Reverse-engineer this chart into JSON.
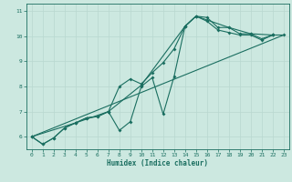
{
  "xlabel": "Humidex (Indice chaleur)",
  "bg_color": "#cce8e0",
  "grid_color": "#b8d8d0",
  "line_color": "#1a6e60",
  "xlim": [
    -0.5,
    23.5
  ],
  "ylim": [
    5.5,
    11.3
  ],
  "xticks": [
    0,
    1,
    2,
    3,
    4,
    5,
    6,
    7,
    8,
    9,
    10,
    11,
    12,
    13,
    14,
    15,
    16,
    17,
    18,
    19,
    20,
    21,
    22,
    23
  ],
  "yticks": [
    6,
    7,
    8,
    9,
    10,
    11
  ],
  "line1": [
    [
      0,
      6.0
    ],
    [
      1,
      5.7
    ],
    [
      2,
      5.95
    ],
    [
      3,
      6.35
    ],
    [
      4,
      6.55
    ],
    [
      5,
      6.75
    ],
    [
      6,
      6.8
    ],
    [
      7,
      7.0
    ],
    [
      8,
      6.25
    ],
    [
      9,
      6.6
    ],
    [
      10,
      8.0
    ],
    [
      11,
      8.35
    ],
    [
      12,
      6.9
    ],
    [
      13,
      8.4
    ],
    [
      14,
      10.4
    ],
    [
      15,
      10.8
    ],
    [
      16,
      10.75
    ],
    [
      17,
      10.35
    ],
    [
      18,
      10.35
    ],
    [
      19,
      10.1
    ],
    [
      20,
      10.1
    ],
    [
      21,
      9.9
    ],
    [
      22,
      10.05
    ]
  ],
  "line2": [
    [
      0,
      6.0
    ],
    [
      1,
      5.7
    ],
    [
      2,
      5.95
    ],
    [
      3,
      6.35
    ],
    [
      4,
      6.55
    ],
    [
      5,
      6.75
    ],
    [
      6,
      6.8
    ],
    [
      7,
      7.0
    ],
    [
      8,
      8.0
    ],
    [
      9,
      8.3
    ],
    [
      10,
      8.1
    ],
    [
      11,
      8.55
    ],
    [
      12,
      8.95
    ],
    [
      13,
      9.5
    ],
    [
      14,
      10.4
    ],
    [
      15,
      10.8
    ],
    [
      16,
      10.6
    ],
    [
      17,
      10.25
    ],
    [
      18,
      10.15
    ],
    [
      19,
      10.05
    ],
    [
      20,
      10.05
    ],
    [
      21,
      9.85
    ],
    [
      22,
      10.05
    ]
  ],
  "line3": [
    [
      0,
      6.0
    ],
    [
      4,
      6.55
    ],
    [
      7,
      7.0
    ],
    [
      10,
      8.05
    ],
    [
      14,
      10.4
    ],
    [
      15,
      10.8
    ],
    [
      16,
      10.65
    ],
    [
      18,
      10.35
    ],
    [
      20,
      10.1
    ],
    [
      22,
      10.05
    ],
    [
      23,
      10.05
    ]
  ],
  "line4": [
    [
      0,
      6.0
    ],
    [
      23,
      10.05
    ]
  ]
}
